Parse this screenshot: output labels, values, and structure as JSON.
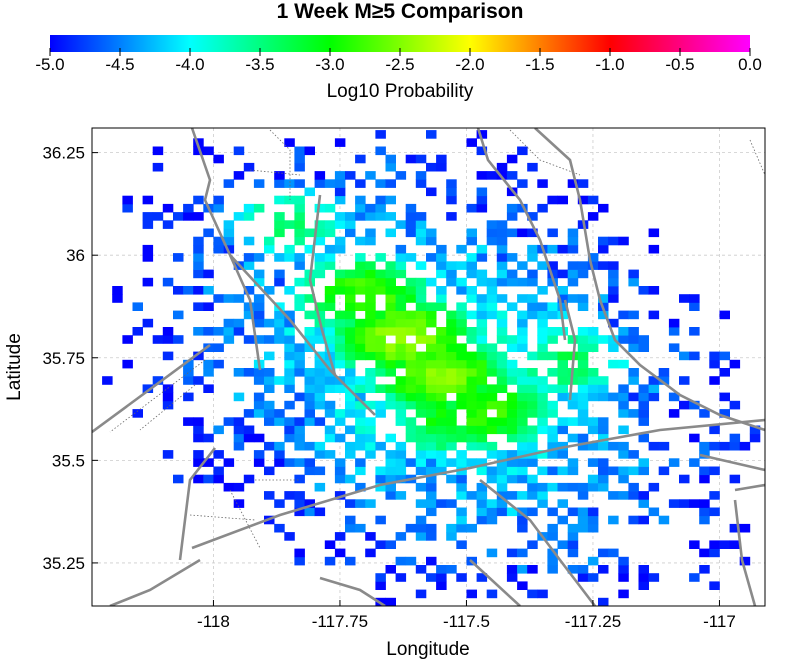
{
  "chart_data": {
    "type": "heatmap",
    "title": "1 Week M≥5 Comparison",
    "xlabel": "Longitude",
    "ylabel": "Latitude",
    "xlim": [
      -118.24,
      -116.91
    ],
    "ylim": [
      35.145,
      36.31
    ],
    "x_ticks": [
      -118,
      -117.75,
      -117.5,
      -117.25,
      -117
    ],
    "x_tick_labels": [
      "-118",
      "-117.75",
      "-117.5",
      "-117.25",
      "-117"
    ],
    "y_ticks": [
      35.25,
      35.5,
      35.75,
      36,
      36.25
    ],
    "y_tick_labels": [
      "35.25",
      "35.5",
      "35.75",
      "36",
      "36.25"
    ],
    "grid": true,
    "colorbar": {
      "label": "Log10 Probability",
      "range": [
        -5.0,
        0.0
      ],
      "ticks": [
        -5.0,
        -4.5,
        -4.0,
        -3.5,
        -3.0,
        -2.5,
        -2.0,
        -1.5,
        -1.0,
        -0.5,
        0.0
      ],
      "tick_labels": [
        "-5.0",
        "-4.5",
        "-4.0",
        "-3.5",
        "-3.0",
        "-2.5",
        "-2.0",
        "-1.5",
        "-1.0",
        "-0.5",
        "0.0"
      ],
      "colors": [
        "#0000ff",
        "#00ffff",
        "#00ff00",
        "#ffff00",
        "#ff0000",
        "#ff00ff"
      ]
    },
    "grid_resolution_deg": 0.02,
    "hotspots": [
      {
        "lon": -117.7,
        "lat": 35.9,
        "value": -2.7
      },
      {
        "lon": -117.62,
        "lat": 35.8,
        "value": -2.4
      },
      {
        "lon": -117.55,
        "lat": 35.71,
        "value": -2.5
      },
      {
        "lon": -117.46,
        "lat": 35.62,
        "value": -2.8
      },
      {
        "lon": -117.53,
        "lat": 35.6,
        "value": -3.0
      },
      {
        "lon": -117.85,
        "lat": 36.08,
        "value": -3.4
      },
      {
        "lon": -117.3,
        "lat": 35.74,
        "value": -3.3
      }
    ],
    "background_value": -5.0,
    "peak_value": -2.4,
    "map_lines_color": "#808080"
  }
}
